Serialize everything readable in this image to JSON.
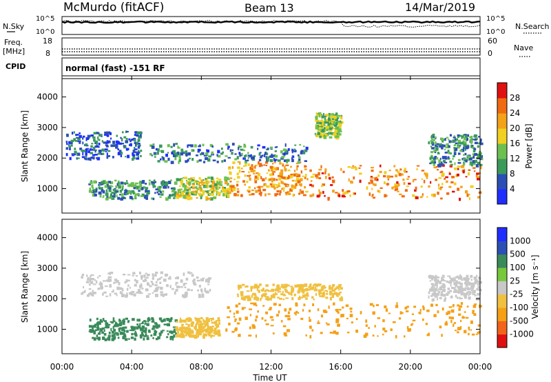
{
  "header": {
    "station": "McMurdo (fitACF)",
    "beam": "Beam 13",
    "date": "14/Mar/2019"
  },
  "side_labels": {
    "nsky": "N.Sky",
    "nsearch": "N.Search",
    "freq_line1": "Freq.",
    "freq_line2": "[MHz]",
    "nave": "Nave",
    "cpid": "CPID",
    "cpid_value": "normal (fast) -151 RF"
  },
  "strip_ticks": {
    "noise_left": [
      "10^5",
      "10^0"
    ],
    "noise_right": [
      "10^5",
      "10^0"
    ],
    "freq_left": [
      "18",
      "8"
    ],
    "nave_right": [
      "60",
      "0"
    ]
  },
  "colors": {
    "power_scale": [
      "#1f2eff",
      "#2c4fb5",
      "#3a9a5a",
      "#6dc050",
      "#f0d020",
      "#f3a21a",
      "#f06a12",
      "#e01010"
    ],
    "velocity_scale": [
      "#e01010",
      "#f2641a",
      "#f5a016",
      "#f0c040",
      "#c8c8c8",
      "#78c83c",
      "#3a8a5a",
      "#2c4fb5",
      "#1f2eff"
    ]
  },
  "chart_data": [
    {
      "type": "heatmap",
      "panel": "power",
      "ylabel": "Slant Range [km]",
      "ylim": [
        200,
        4600
      ],
      "yticks": [
        "1000",
        "2000",
        "3000",
        "4000"
      ],
      "colorbar_label": "Power [dB]",
      "colorbar_ticks": [
        "4",
        "8",
        "12",
        "16",
        "20",
        "24",
        "28"
      ],
      "x": [
        "00:00",
        "04:00",
        "08:00",
        "12:00",
        "16:00",
        "20:00",
        "00:00"
      ],
      "regions": [
        {
          "t0": 1.5,
          "t1": 6.5,
          "r0": 700,
          "r1": 1300,
          "value": 10
        },
        {
          "t0": 6.5,
          "t1": 9.5,
          "r0": 700,
          "r1": 1400,
          "value": 16
        },
        {
          "t0": 9.5,
          "t1": 14.0,
          "r0": 800,
          "r1": 1900,
          "value": 22
        },
        {
          "t0": 14.0,
          "t1": 24.0,
          "r0": 700,
          "r1": 1800,
          "value": 24
        },
        {
          "t0": 0.2,
          "t1": 4.5,
          "r0": 2000,
          "r1": 2900,
          "value": 6
        },
        {
          "t0": 5.0,
          "t1": 14.0,
          "r0": 1900,
          "r1": 2500,
          "value": 8
        },
        {
          "t0": 21.0,
          "t1": 24.0,
          "r0": 1800,
          "r1": 2800,
          "value": 10
        },
        {
          "t0": 14.5,
          "t1": 16.0,
          "r0": 2700,
          "r1": 3500,
          "value": 14
        }
      ]
    },
    {
      "type": "heatmap",
      "panel": "velocity",
      "ylabel": "Slant Range [km]",
      "ylim": [
        200,
        4600
      ],
      "yticks": [
        "1000",
        "2000",
        "3000",
        "4000"
      ],
      "colorbar_label": "Velocity [m s⁻¹]",
      "colorbar_ticks": [
        "-1000",
        "-500",
        "-100",
        "-25",
        "25",
        "100",
        "500",
        "1000"
      ],
      "x": [
        "00:00",
        "04:00",
        "08:00",
        "12:00",
        "16:00",
        "20:00",
        "00:00"
      ],
      "xlabel": "Time UT",
      "regions": [
        {
          "t0": 1.5,
          "t1": 6.5,
          "r0": 700,
          "r1": 1400,
          "value": 300
        },
        {
          "t0": 6.5,
          "t1": 9.0,
          "r0": 800,
          "r1": 1400,
          "value": -60
        },
        {
          "t0": 9.0,
          "t1": 24.0,
          "r0": 800,
          "r1": 1900,
          "value": -300
        },
        {
          "t0": 1.0,
          "t1": 8.5,
          "r0": 2100,
          "r1": 2900,
          "value": 0
        },
        {
          "t0": 10.0,
          "t1": 16.0,
          "r0": 2000,
          "r1": 2500,
          "value": -60
        },
        {
          "t0": 21.0,
          "t1": 24.0,
          "r0": 2000,
          "r1": 2800,
          "value": 0
        }
      ]
    }
  ]
}
